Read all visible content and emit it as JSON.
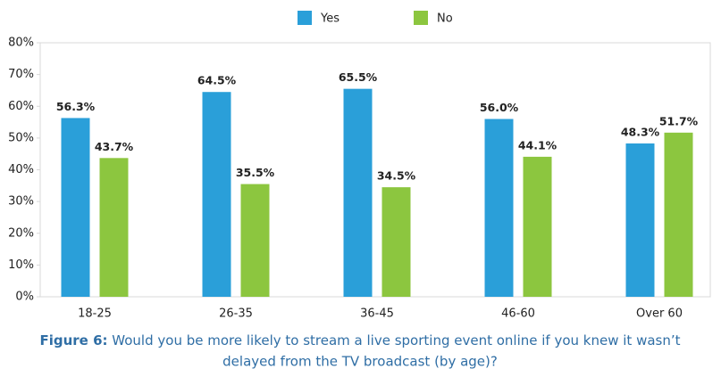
{
  "chart_data": {
    "type": "bar",
    "categories": [
      "18-25",
      "26-35",
      "36-45",
      "46-60",
      "Over 60"
    ],
    "series": [
      {
        "name": "Yes",
        "color": "#2a9fd9",
        "values": [
          56.3,
          64.5,
          65.5,
          56.0,
          48.3
        ],
        "value_labels": [
          "56.3%",
          "64.5%",
          "65.5%",
          "56.0%",
          "48.3%"
        ]
      },
      {
        "name": "No",
        "color": "#8cc63f",
        "values": [
          43.7,
          35.5,
          34.5,
          44.1,
          51.7
        ],
        "value_labels": [
          "43.7%",
          "35.5%",
          "34.5%",
          "44.1%",
          "51.7%"
        ]
      }
    ],
    "ylim": [
      0,
      80
    ],
    "yticks": [
      {
        "value": 0,
        "label": "0%"
      },
      {
        "value": 10,
        "label": "10%"
      },
      {
        "value": 20,
        "label": "20%"
      },
      {
        "value": 30,
        "label": "30%"
      },
      {
        "value": 40,
        "label": "40%"
      },
      {
        "value": 50,
        "label": "50%"
      },
      {
        "value": 60,
        "label": "60%"
      },
      {
        "value": 70,
        "label": "70%"
      },
      {
        "value": 80,
        "label": "80%"
      }
    ],
    "grid": false,
    "caption_label": "Figure 6:",
    "caption": [
      "Would you be more likely to stream a live sporting event online if you knew it wasn’t",
      "delayed from the TV broadcast (by age)?"
    ]
  }
}
